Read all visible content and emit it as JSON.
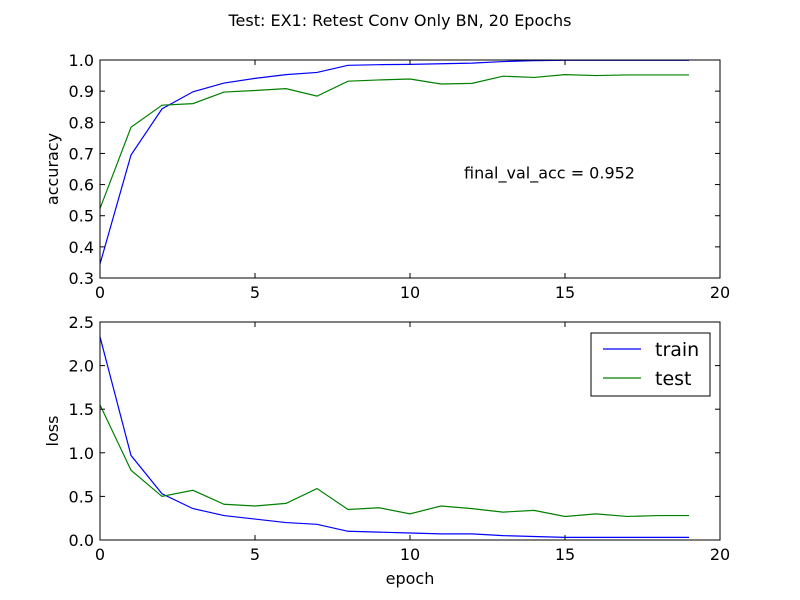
{
  "figure": {
    "suptitle": "Test: EX1: Retest Conv Only BN, 20 Epochs",
    "colors": {
      "train": "#0000ff",
      "test": "#008000",
      "axes": "#000000"
    }
  },
  "chart_data": [
    {
      "type": "line",
      "title": "",
      "xlabel": "",
      "ylabel": "accuracy",
      "xlim": [
        0,
        20
      ],
      "ylim": [
        0.3,
        1.0
      ],
      "xticks": [
        "0",
        "5",
        "10",
        "15",
        "20"
      ],
      "yticks": [
        "0.3",
        "0.4",
        "0.5",
        "0.6",
        "0.7",
        "0.8",
        "0.9",
        "1.0"
      ],
      "annotation": "final_val_acc = 0.952",
      "grid": false,
      "x": [
        0,
        1,
        2,
        3,
        4,
        5,
        6,
        7,
        8,
        9,
        10,
        11,
        12,
        13,
        14,
        15,
        16,
        17,
        18,
        19
      ],
      "series": [
        {
          "name": "train",
          "color": "#0000ff",
          "values": [
            0.345,
            0.695,
            0.843,
            0.898,
            0.926,
            0.941,
            0.953,
            0.96,
            0.983,
            0.985,
            0.986,
            0.988,
            0.99,
            0.995,
            0.998,
            0.999,
            0.999,
            0.999,
            0.999,
            0.999
          ]
        },
        {
          "name": "test",
          "color": "#008000",
          "values": [
            0.523,
            0.784,
            0.855,
            0.86,
            0.897,
            0.902,
            0.908,
            0.884,
            0.932,
            0.936,
            0.939,
            0.923,
            0.925,
            0.948,
            0.944,
            0.953,
            0.95,
            0.952,
            0.952,
            0.952
          ]
        }
      ]
    },
    {
      "type": "line",
      "title": "",
      "xlabel": "epoch",
      "ylabel": "loss",
      "xlim": [
        0,
        20
      ],
      "ylim": [
        0.0,
        2.5
      ],
      "xticks": [
        "0",
        "5",
        "10",
        "15",
        "20"
      ],
      "yticks": [
        "0.0",
        "0.5",
        "1.0",
        "1.5",
        "2.0",
        "2.5"
      ],
      "grid": false,
      "legend": {
        "placement": "top-right",
        "entries": [
          "train",
          "test"
        ]
      },
      "x": [
        0,
        1,
        2,
        3,
        4,
        5,
        6,
        7,
        8,
        9,
        10,
        11,
        12,
        13,
        14,
        15,
        16,
        17,
        18,
        19
      ],
      "series": [
        {
          "name": "train",
          "color": "#0000ff",
          "values": [
            2.33,
            0.97,
            0.53,
            0.36,
            0.28,
            0.24,
            0.2,
            0.18,
            0.1,
            0.09,
            0.08,
            0.07,
            0.07,
            0.05,
            0.04,
            0.03,
            0.03,
            0.03,
            0.03,
            0.03
          ]
        },
        {
          "name": "test",
          "color": "#008000",
          "values": [
            1.55,
            0.8,
            0.5,
            0.57,
            0.41,
            0.39,
            0.42,
            0.59,
            0.35,
            0.37,
            0.3,
            0.39,
            0.36,
            0.32,
            0.34,
            0.27,
            0.3,
            0.27,
            0.28,
            0.28
          ]
        }
      ]
    }
  ]
}
